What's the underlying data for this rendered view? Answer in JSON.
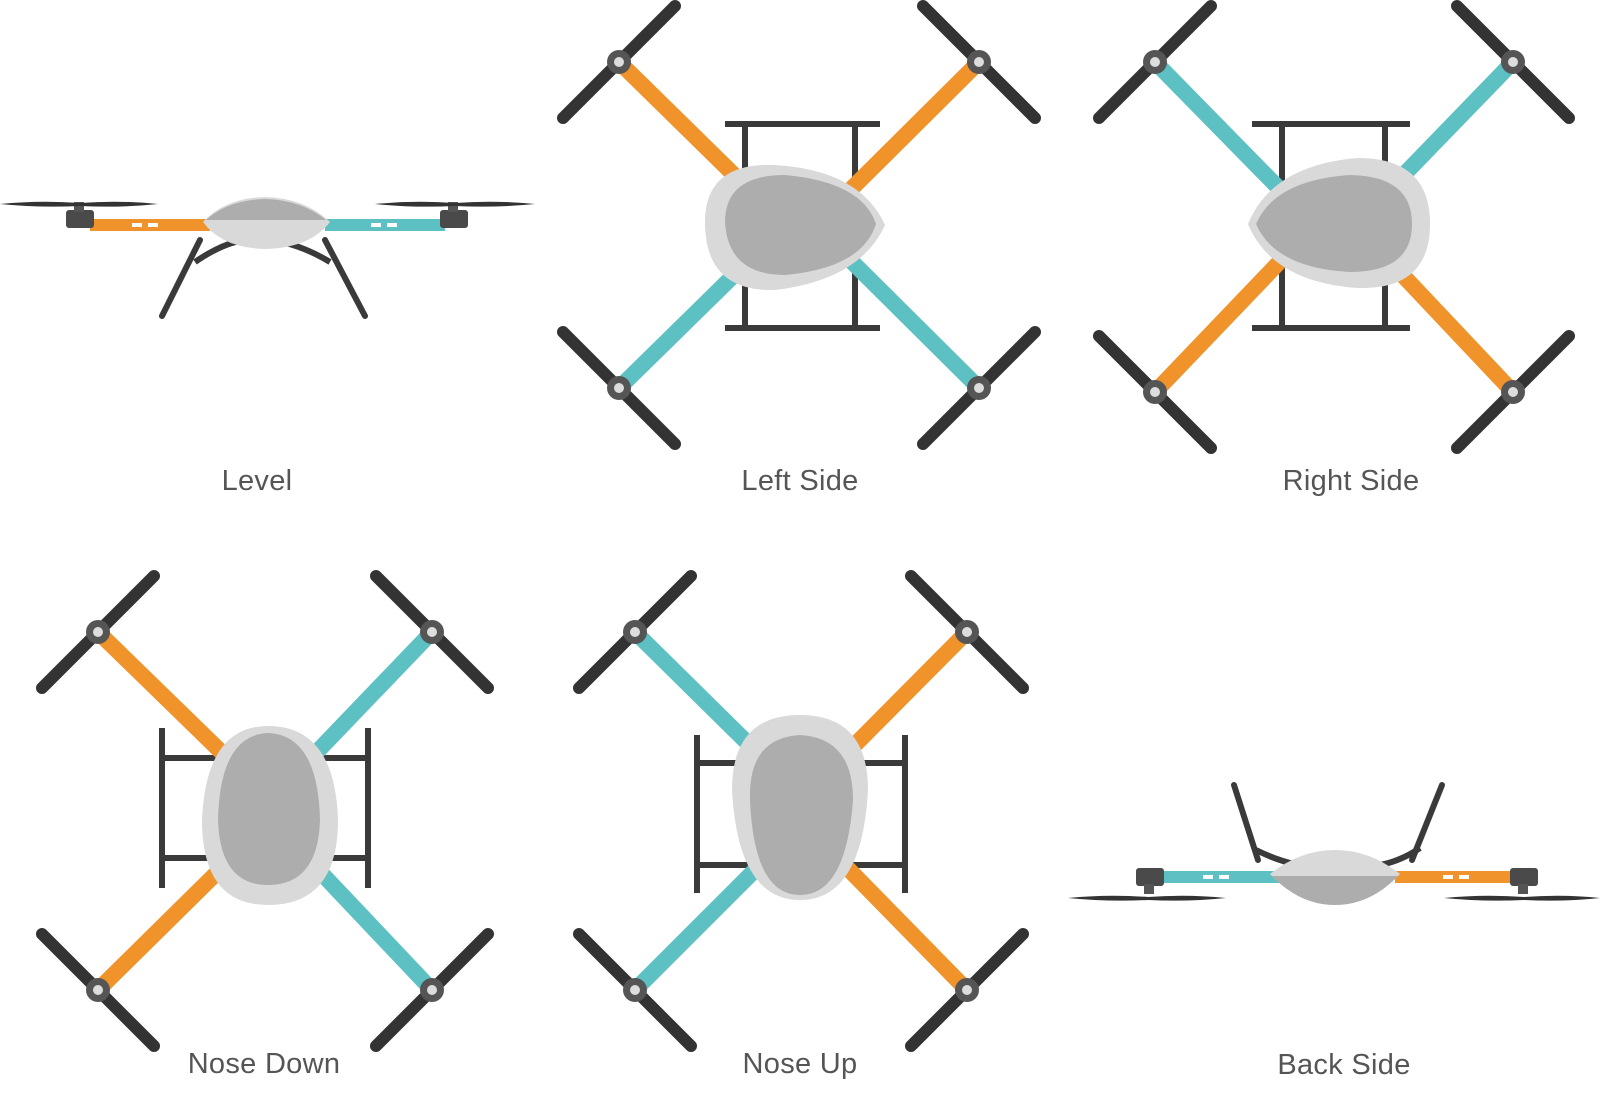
{
  "colors": {
    "orange_arm": "#f0932a",
    "teal_arm": "#5dc1c3",
    "frame": "#3a3a3a",
    "body_outer": "#d9d9d9",
    "body_inner": "#adadad",
    "propeller": "#333333",
    "text": "#555555"
  },
  "icons": [
    "quadcopter-level-icon",
    "quadcopter-top-icon",
    "quadcopter-back-icon"
  ],
  "views": {
    "level": {
      "label": "Level"
    },
    "left_side": {
      "label": "Left Side"
    },
    "right_side": {
      "label": "Right Side"
    },
    "nose_down": {
      "label": "Nose Down"
    },
    "nose_up": {
      "label": "Nose Up"
    },
    "back_side": {
      "label": "Back Side"
    }
  }
}
